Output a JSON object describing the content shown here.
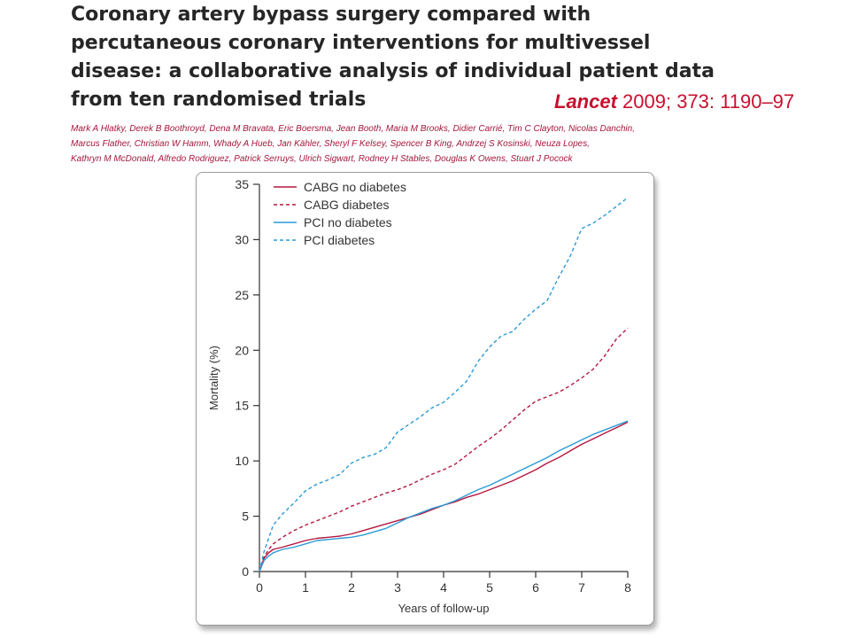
{
  "title_lines": [
    "Coronary artery bypass surgery compared with",
    "percutaneous coronary interventions for multivessel",
    "disease: a collaborative analysis of individual patient data",
    "from ten randomised trials"
  ],
  "citation": {
    "journal": "Lancet",
    "details": " 2009; 373: 1190–97"
  },
  "author_lines": [
    "Mark A Hlatky, Derek B Boothroyd, Dena M Bravata, Eric Boersma, Jean Booth, Maria M Brooks, Didier Carrié, Tim C Clayton, Nicolas Danchin,",
    "Marcus Flather, Christian W Hamm, Whady A Hueb, Jan Kähler, Sheryl F Kelsey, Spencer B King, Andrzej S Kosinski, Neuza Lopes,",
    "Kathryn M McDonald, Alfredo Rodriguez, Patrick Serruys, Ulrich Sigwart, Rodney H Stables, Douglas K Owens, Stuart J Pocock"
  ],
  "chart_data": {
    "type": "line",
    "title": "",
    "xlabel": "Years of follow-up",
    "ylabel": "Mortality (%)",
    "xlim": [
      0,
      8
    ],
    "ylim": [
      0,
      35
    ],
    "xticks": [
      0,
      1,
      2,
      3,
      4,
      5,
      6,
      7,
      8
    ],
    "yticks": [
      0,
      5,
      10,
      15,
      20,
      25,
      30,
      35
    ],
    "grid": false,
    "legend_position": "top-left",
    "series": [
      {
        "name": "CABG no diabetes",
        "color": "#b5173f",
        "dash": "solid",
        "x": [
          0,
          0.1,
          0.2,
          0.3,
          0.5,
          0.75,
          1,
          1.25,
          1.5,
          1.75,
          2,
          2.25,
          2.5,
          2.75,
          3,
          3.25,
          3.5,
          3.75,
          4,
          4.25,
          4.5,
          4.75,
          5,
          5.25,
          5.5,
          5.75,
          6,
          6.25,
          6.5,
          6.75,
          7,
          7.25,
          7.5,
          7.75,
          8
        ],
        "values": [
          0,
          1.2,
          1.7,
          2.0,
          2.2,
          2.5,
          2.8,
          3.0,
          3.1,
          3.2,
          3.4,
          3.7,
          4.0,
          4.3,
          4.6,
          4.9,
          5.2,
          5.6,
          6.0,
          6.3,
          6.7,
          7.0,
          7.4,
          7.8,
          8.2,
          8.7,
          9.2,
          9.8,
          10.3,
          10.9,
          11.5,
          12.0,
          12.5,
          13.0,
          13.5
        ]
      },
      {
        "name": "CABG diabetes",
        "color": "#b5173f",
        "dash": "dashed",
        "x": [
          0,
          0.1,
          0.2,
          0.3,
          0.5,
          0.75,
          1,
          1.25,
          1.5,
          1.75,
          2,
          2.25,
          2.5,
          2.75,
          3,
          3.25,
          3.5,
          3.75,
          4,
          4.25,
          4.5,
          4.75,
          5,
          5.25,
          5.5,
          5.75,
          6,
          6.25,
          6.5,
          6.75,
          7,
          7.25,
          7.5,
          7.75,
          8
        ],
        "values": [
          0,
          1.3,
          2.0,
          2.5,
          3.1,
          3.7,
          4.2,
          4.6,
          5.0,
          5.4,
          5.9,
          6.3,
          6.7,
          7.1,
          7.4,
          7.8,
          8.3,
          8.8,
          9.2,
          9.7,
          10.5,
          11.3,
          12.0,
          12.8,
          13.7,
          14.6,
          15.4,
          15.8,
          16.2,
          16.8,
          17.5,
          18.3,
          19.5,
          21.0,
          22.0
        ]
      },
      {
        "name": "PCI no diabetes",
        "color": "#2a9ad6",
        "dash": "solid",
        "x": [
          0,
          0.1,
          0.2,
          0.3,
          0.5,
          0.75,
          1,
          1.25,
          1.5,
          1.75,
          2,
          2.25,
          2.5,
          2.75,
          3,
          3.25,
          3.5,
          3.75,
          4,
          4.25,
          4.5,
          4.75,
          5,
          5.25,
          5.5,
          5.75,
          6,
          6.25,
          6.5,
          6.75,
          7,
          7.25,
          7.5,
          7.75,
          8
        ],
        "values": [
          0,
          1.0,
          1.4,
          1.7,
          2.0,
          2.2,
          2.5,
          2.8,
          2.9,
          3.0,
          3.1,
          3.3,
          3.6,
          3.9,
          4.4,
          4.9,
          5.3,
          5.7,
          6.0,
          6.4,
          6.9,
          7.4,
          7.8,
          8.3,
          8.8,
          9.3,
          9.8,
          10.3,
          10.9,
          11.4,
          11.9,
          12.4,
          12.8,
          13.2,
          13.6
        ]
      },
      {
        "name": "PCI diabetes",
        "color": "#2a9ad6",
        "dash": "dashed",
        "x": [
          0,
          0.1,
          0.2,
          0.3,
          0.5,
          0.75,
          1,
          1.25,
          1.5,
          1.75,
          2,
          2.25,
          2.5,
          2.75,
          3,
          3.25,
          3.5,
          3.75,
          4,
          4.25,
          4.5,
          4.75,
          5,
          5.25,
          5.5,
          5.75,
          6,
          6.25,
          6.5,
          6.75,
          7,
          7.25,
          7.5,
          7.75,
          8
        ],
        "values": [
          0,
          1.8,
          3.0,
          4.2,
          5.2,
          6.2,
          7.3,
          7.9,
          8.3,
          8.8,
          9.8,
          10.3,
          10.6,
          11.2,
          12.6,
          13.3,
          14.0,
          14.8,
          15.3,
          16.2,
          17.2,
          19.0,
          20.3,
          21.3,
          21.7,
          22.8,
          23.7,
          24.5,
          26.6,
          28.5,
          31.0,
          31.5,
          32.2,
          33.0,
          33.8
        ]
      }
    ]
  }
}
